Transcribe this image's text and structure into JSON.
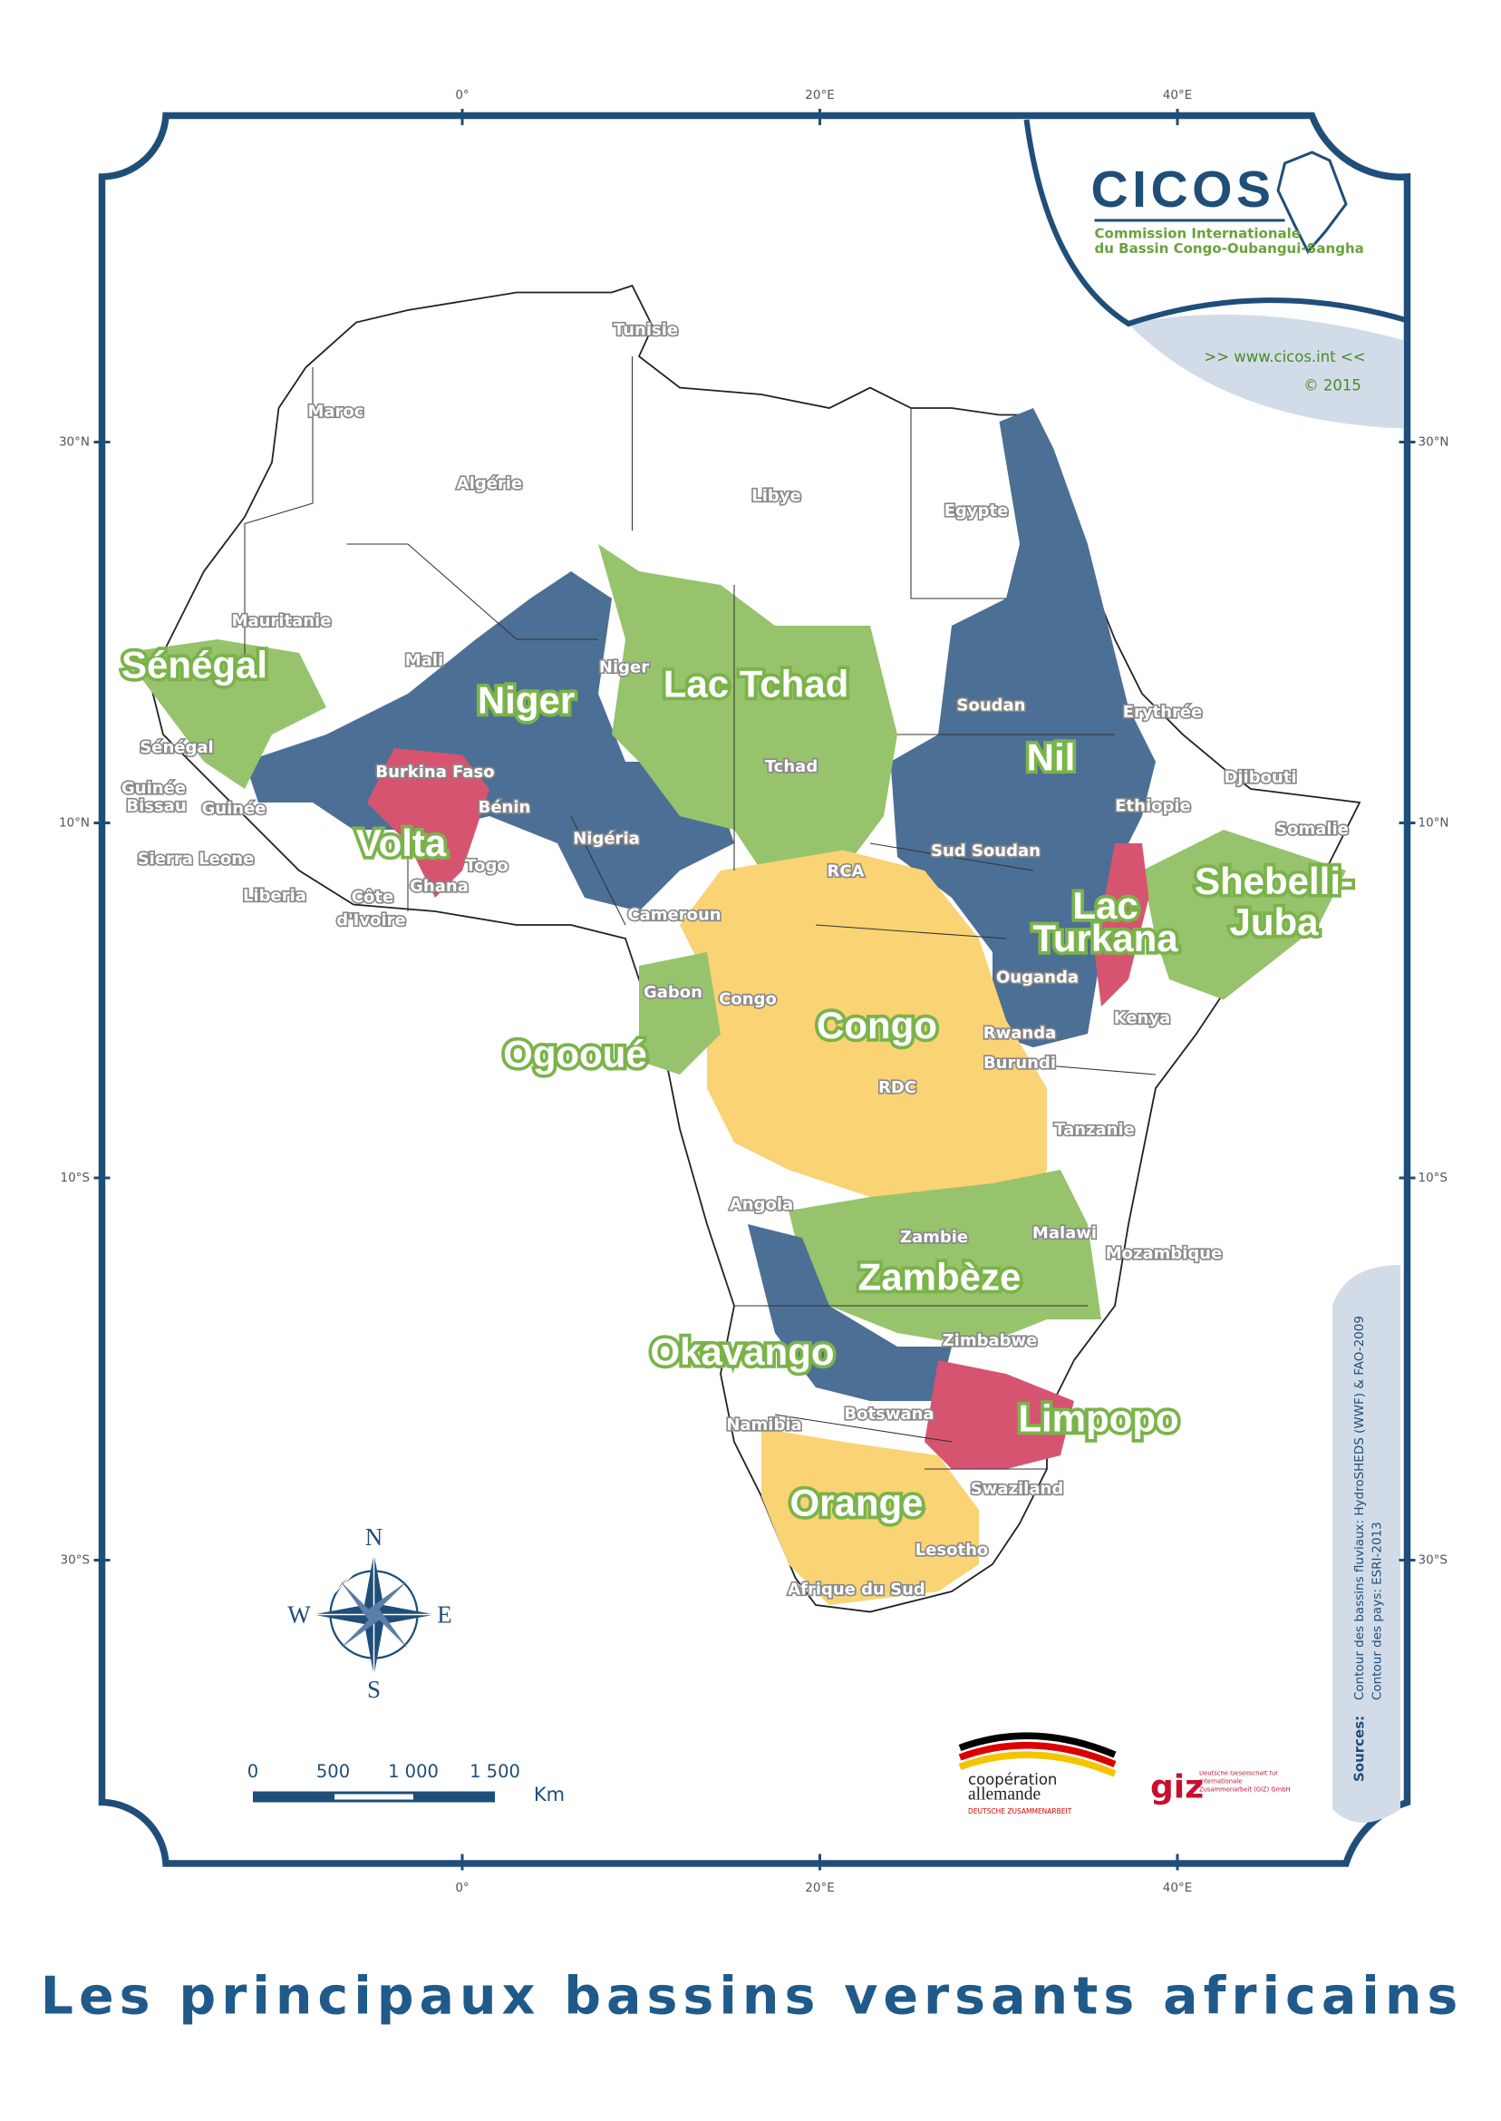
{
  "graticule": {
    "longitudes": [
      "0°",
      "20°E",
      "40°E"
    ],
    "latitudes": [
      "30°N",
      "10°N",
      "10°S",
      "30°S"
    ]
  },
  "logo": {
    "name": "CICOS",
    "line1": "Commission Internationale",
    "line2": "du Bassin Congo-Oubangui-Sangha",
    "website": ">> www.cicos.int <<",
    "copyright": "© 2015"
  },
  "countries": [
    "Tunisie",
    "Maroc",
    "Algérie",
    "Libye",
    "Egypte",
    "Mauritanie",
    "Mali",
    "Niger",
    "Soudan",
    "Erythrée",
    "Sénégal",
    "Burkina Faso",
    "Tchad",
    "Djibouti",
    "Guinée",
    "Bissau",
    "Guinée",
    "Bénin",
    "Ethiopie",
    "Somalie",
    "Nigéria",
    "Sierra Leone",
    "Togo",
    "Sud Soudan",
    "RCA",
    "Ghana",
    "Liberia",
    "Côte",
    "d'Ivoire",
    "Cameroun",
    "Ouganda",
    "Kenya",
    "Gabon",
    "Congo",
    "Rwanda",
    "Burundi",
    "RDC",
    "Tanzanie",
    "Angola",
    "Zambie",
    "Malawi",
    "Mozambique",
    "Zimbabwe",
    "Namibia",
    "Botswana",
    "Swaziland",
    "Lesotho",
    "Afrique du Sud"
  ],
  "basins": [
    "Sénégal",
    "Niger",
    "Lac Tchad",
    "Nil",
    "Volta",
    "Lac",
    "Turkana",
    "Shebelli-",
    "Juba",
    "Congo",
    "Ogooué",
    "Zambèze",
    "Okavango",
    "Limpopo",
    "Orange"
  ],
  "compass": {
    "north": "N",
    "south": "S",
    "east": "E",
    "west": "W"
  },
  "scale_bar": {
    "labels": [
      "0",
      "500",
      "1 000",
      "1 500"
    ],
    "unit": "Km"
  },
  "sources": {
    "heading": "Sources:",
    "line1": "Contour des bassins fluviaux: HydroSHEDS (WWF) & FAO-2009",
    "line2": "Contour des pays: ESRI-2013"
  },
  "partners": {
    "coop1": "coopération",
    "coop2": "allemande",
    "coop3": "DEUTSCHE ZUSAMMENARBEIT",
    "giz": "giz",
    "giz_text": "Deutsche Gesellschaft für Internationale Zusammenarbeit (GIZ) GmbH"
  },
  "title": "Les principaux bassins versants africains"
}
